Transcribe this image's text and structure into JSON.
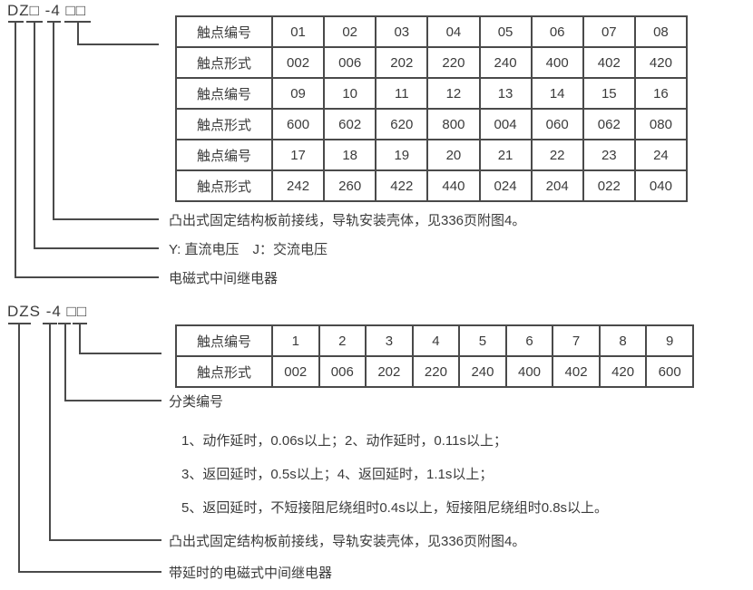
{
  "colors": {
    "background": "#ffffff",
    "text": "#3b3b3b",
    "line": "#4a4a4a"
  },
  "dz_block": {
    "title": "DZ□ -4 □□",
    "table": {
      "rows": [
        [
          "触点编号",
          "01",
          "02",
          "03",
          "04",
          "05",
          "06",
          "07",
          "08"
        ],
        [
          "触点形式",
          "002",
          "006",
          "202",
          "220",
          "240",
          "400",
          "402",
          "420"
        ],
        [
          "触点编号",
          "09",
          "10",
          "11",
          "12",
          "13",
          "14",
          "15",
          "16"
        ],
        [
          "触点形式",
          "600",
          "602",
          "620",
          "800",
          "004",
          "060",
          "062",
          "080"
        ],
        [
          "触点编号",
          "17",
          "18",
          "19",
          "20",
          "21",
          "22",
          "23",
          "24"
        ],
        [
          "触点形式",
          "242",
          "260",
          "422",
          "440",
          "024",
          "204",
          "022",
          "040"
        ]
      ]
    },
    "annotations": {
      "case": "凸出式固定结构板前接线，导轨安装壳体，见336页附图4。",
      "voltage": "Y: 直流电压　J：交流电压",
      "relay_type": "电磁式中间继电器"
    }
  },
  "dzs_block": {
    "title": "DZS -4 □□",
    "table": {
      "rows": [
        [
          "触点编号",
          "1",
          "2",
          "3",
          "4",
          "5",
          "6",
          "7",
          "8",
          "9"
        ],
        [
          "触点形式",
          "002",
          "006",
          "202",
          "220",
          "240",
          "400",
          "402",
          "420",
          "600"
        ]
      ]
    },
    "annotations": {
      "classification": "分类编号",
      "notes": [
        "1、动作延时，0.06s以上；2、动作延时，0.11s以上；",
        "3、返回延时，0.5s以上；4、返回延时，1.1s以上；",
        "5、返回延时，不短接阻尼绕组时0.4s以上，短接阻尼绕组时0.8s以上。"
      ],
      "case": "凸出式固定结构板前接线，导轨安装壳体，见336页附图4。",
      "relay_type": "带延时的电磁式中间继电器"
    }
  }
}
